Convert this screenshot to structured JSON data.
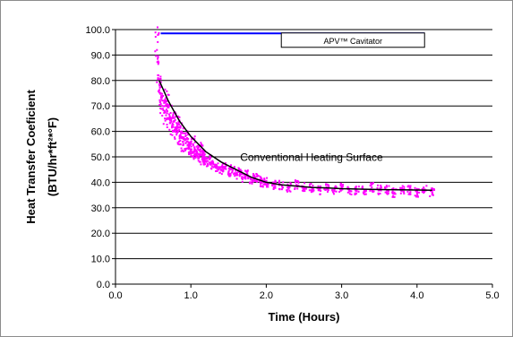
{
  "chart_data": {
    "type": "scatter",
    "title": "",
    "xlabel": "Time (Hours)",
    "ylabel_lines": [
      "Heat Transfer Coeficient",
      "(BTU/hr*ft²*°F)"
    ],
    "xlim": [
      0,
      5
    ],
    "ylim": [
      0,
      100
    ],
    "x_ticks": [
      0,
      1,
      2,
      3,
      4,
      5
    ],
    "x_tick_labels": [
      "0.0",
      "1.0",
      "2.0",
      "3.0",
      "4.0",
      "5.0"
    ],
    "y_ticks": [
      0,
      10,
      20,
      30,
      40,
      50,
      60,
      70,
      80,
      90,
      100
    ],
    "y_tick_labels": [
      "0.0",
      "10.0",
      "20.0",
      "30.0",
      "40.0",
      "50.0",
      "60.0",
      "70.0",
      "80.0",
      "90.0",
      "100.0"
    ],
    "grid": "horizontal",
    "legend": "top-right",
    "colors": {
      "cavitator_line": "#0000ff",
      "scatter_points": "#ff00ff",
      "fit_line": "#000000",
      "gridline": "#000000"
    },
    "series": [
      {
        "name": "APV™ Cavitator",
        "kind": "line",
        "x": [
          0.6,
          4.1
        ],
        "y": [
          98.5,
          98.5
        ]
      },
      {
        "name": "Conventional Heating Surface",
        "kind": "line",
        "x": [
          0.58,
          0.7,
          0.85,
          1.0,
          1.2,
          1.4,
          1.6,
          1.8,
          2.0,
          2.2,
          2.4,
          2.6,
          2.8,
          3.0,
          3.3,
          3.6,
          3.9,
          4.2
        ],
        "y": [
          80,
          72,
          64,
          58,
          52,
          48,
          45,
          42,
          40,
          39,
          38.5,
          38,
          37.8,
          37.5,
          37.3,
          37.1,
          37.0,
          36.9
        ]
      },
      {
        "kind": "scatter",
        "x": [
          0.55,
          0.57,
          0.6,
          0.62,
          0.65,
          0.68,
          0.7,
          0.72,
          0.75,
          0.78,
          0.8,
          0.82,
          0.85,
          0.88,
          0.9,
          0.93,
          0.95,
          0.98,
          1.0,
          1.03,
          1.05,
          1.08,
          1.1,
          1.13,
          1.15,
          1.18,
          1.2,
          1.25,
          1.3,
          1.35,
          1.4,
          1.45,
          1.5,
          1.55,
          1.6,
          1.65,
          1.7,
          1.75,
          1.8,
          1.85,
          1.9,
          1.95,
          2.0,
          2.1,
          2.2,
          2.3,
          2.4,
          2.5,
          2.6,
          2.7,
          2.8,
          2.9,
          3.0,
          3.1,
          3.2,
          3.3,
          3.4,
          3.5,
          3.6,
          3.7,
          3.8,
          3.9,
          4.0,
          4.1,
          4.2
        ],
        "y": [
          92,
          82,
          75,
          70,
          68,
          72,
          65,
          66,
          62,
          64,
          60,
          63,
          58,
          60,
          55,
          57,
          56,
          54,
          53,
          55,
          51,
          52,
          50,
          53,
          49,
          51,
          48,
          49,
          47,
          46,
          45,
          46,
          44,
          45,
          43,
          44,
          42,
          43,
          41,
          42,
          41,
          40,
          40,
          39,
          39,
          38,
          39,
          38,
          38,
          37,
          38,
          37,
          38,
          37,
          37,
          37,
          38,
          37,
          37,
          36,
          37,
          37,
          36,
          37,
          36
        ]
      }
    ],
    "annotations": [
      {
        "text": "Conventional Heating Surface",
        "x": 2.6,
        "y": 48.5
      },
      {
        "text": "APV™ Cavitator",
        "x": 3.15,
        "y": 95.5,
        "boxed": true
      }
    ]
  }
}
